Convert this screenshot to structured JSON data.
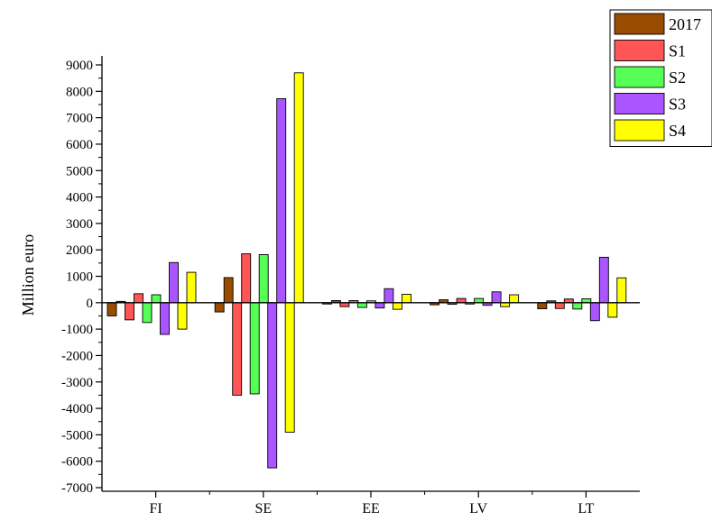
{
  "chart_data": {
    "type": "bar",
    "ylabel": "Million euro",
    "ylim": [
      -7000,
      9000
    ],
    "yticks": [
      -7000,
      -6000,
      -5000,
      -4000,
      -3000,
      -2000,
      -1000,
      0,
      1000,
      2000,
      3000,
      4000,
      5000,
      6000,
      7000,
      8000,
      9000
    ],
    "categories": [
      "FI",
      "SE",
      "EE",
      "LV",
      "LT"
    ],
    "legend_position": "top-right",
    "grid": false,
    "series": [
      {
        "name": "2017",
        "color": "#994C00",
        "negative": [
          -500,
          -350,
          -50,
          -80,
          -230
        ],
        "positive": [
          50,
          950,
          80,
          110,
          70
        ]
      },
      {
        "name": "S1",
        "color": "#FF5555",
        "negative": [
          -650,
          -3500,
          -150,
          -60,
          -220
        ],
        "positive": [
          340,
          1850,
          80,
          160,
          140
        ]
      },
      {
        "name": "S2",
        "color": "#55FF55",
        "negative": [
          -750,
          -3450,
          -180,
          -50,
          -240
        ],
        "positive": [
          300,
          1820,
          70,
          160,
          150
        ]
      },
      {
        "name": "S3",
        "color": "#AA55FF",
        "negative": [
          -1200,
          -6250,
          -200,
          -100,
          -680
        ],
        "positive": [
          1520,
          7720,
          530,
          410,
          1720
        ]
      },
      {
        "name": "S4",
        "color": "#FFFF00",
        "negative": [
          -1000,
          -4900,
          -250,
          -150,
          -550
        ],
        "positive": [
          1150,
          8700,
          320,
          300,
          940
        ]
      }
    ]
  }
}
